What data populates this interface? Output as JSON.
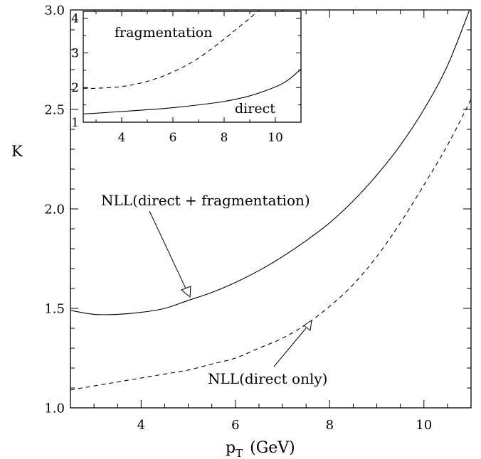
{
  "chart_data": [
    {
      "type": "line",
      "xlabel": "p",
      "xlabel_sub": "T",
      "xlabel_unit": "(GeV)",
      "ylabel": "K",
      "xlim": [
        2.5,
        11
      ],
      "ylim": [
        1.0,
        3.0
      ],
      "x_ticks": [
        4,
        6,
        8,
        10
      ],
      "y_ticks": [
        1.0,
        1.5,
        2.0,
        2.5,
        3.0
      ],
      "y_tick_labels": [
        "1.0",
        "1.5",
        "2.0",
        "2.5",
        "3.0"
      ],
      "grid": false,
      "series": [
        {
          "name": "NLL(direct + fragmentation)",
          "style": "solid",
          "x": [
            2.5,
            3.0,
            3.5,
            4.0,
            4.5,
            5.0,
            5.5,
            6.0,
            6.5,
            7.0,
            7.5,
            8.0,
            8.5,
            9.0,
            9.5,
            10.0,
            10.5,
            11.0
          ],
          "y": [
            1.49,
            1.47,
            1.47,
            1.48,
            1.5,
            1.54,
            1.58,
            1.63,
            1.69,
            1.76,
            1.84,
            1.93,
            2.04,
            2.17,
            2.32,
            2.5,
            2.72,
            3.02
          ]
        },
        {
          "name": "NLL(direct only)",
          "style": "dashed",
          "x": [
            2.5,
            3.0,
            3.5,
            4.0,
            4.5,
            5.0,
            5.5,
            6.0,
            6.5,
            7.0,
            7.5,
            8.0,
            8.5,
            9.0,
            9.5,
            10.0,
            10.5,
            11.0
          ],
          "y": [
            1.09,
            1.11,
            1.13,
            1.15,
            1.17,
            1.19,
            1.22,
            1.25,
            1.3,
            1.35,
            1.42,
            1.51,
            1.62,
            1.76,
            1.93,
            2.12,
            2.32,
            2.55
          ]
        }
      ],
      "annotations": [
        {
          "text": "NLL(direct + fragmentation)",
          "points_to": [
            5.0,
            1.55
          ]
        },
        {
          "text": "NLL(direct only)",
          "points_to": [
            7.6,
            1.43
          ]
        }
      ]
    },
    {
      "type": "line",
      "inset": true,
      "xlim": [
        2.5,
        11
      ],
      "ylim": [
        1,
        4.2
      ],
      "x_ticks": [
        4,
        6,
        8,
        10
      ],
      "y_ticks": [
        1,
        2,
        3,
        4
      ],
      "grid": false,
      "series": [
        {
          "name": "fragmentation",
          "style": "dashed",
          "x": [
            2.5,
            3.0,
            4.0,
            5.0,
            6.0,
            7.0,
            8.0,
            8.5,
            9.0,
            9.3
          ],
          "y": [
            1.98,
            1.98,
            2.03,
            2.18,
            2.45,
            2.85,
            3.4,
            3.7,
            4.0,
            4.2
          ]
        },
        {
          "name": "direct",
          "style": "solid",
          "x": [
            2.5,
            3.0,
            4.0,
            5.0,
            6.0,
            7.0,
            8.0,
            9.0,
            10.0,
            10.5,
            11.0
          ],
          "y": [
            1.24,
            1.26,
            1.31,
            1.36,
            1.42,
            1.5,
            1.6,
            1.76,
            2.02,
            2.22,
            2.53
          ]
        }
      ]
    }
  ]
}
